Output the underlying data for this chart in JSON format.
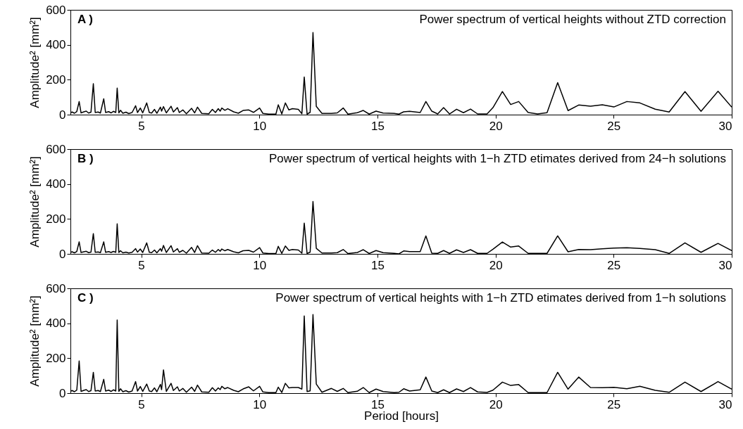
{
  "chart_data": [
    {
      "type": "line",
      "title": "Power spectrum of vertical heights without ZTD correction",
      "annotations": [
        "A )"
      ],
      "ylabel": "Amplitude² [mm²]",
      "color": "#000000",
      "xlim": [
        2,
        30
      ],
      "xticks": [
        5,
        10,
        15,
        20,
        25,
        30
      ],
      "ylim": [
        0,
        600
      ],
      "yticks": [
        0,
        200,
        400,
        600
      ],
      "x": [
        2.0,
        2.07,
        2.17,
        2.27,
        2.37,
        2.45,
        2.57,
        2.67,
        2.77,
        2.87,
        2.97,
        3.05,
        3.17,
        3.27,
        3.41,
        3.49,
        3.62,
        3.72,
        3.82,
        3.92,
        3.98,
        4.05,
        4.12,
        4.22,
        4.35,
        4.47,
        4.61,
        4.76,
        4.84,
        4.96,
        5.06,
        5.23,
        5.34,
        5.44,
        5.56,
        5.66,
        5.81,
        5.86,
        5.94,
        6.06,
        6.26,
        6.36,
        6.53,
        6.61,
        6.76,
        6.91,
        7.13,
        7.26,
        7.38,
        7.56,
        7.86,
        8.01,
        8.14,
        8.26,
        8.34,
        8.41,
        8.54,
        8.66,
        8.91,
        9.11,
        9.31,
        9.55,
        9.75,
        10.01,
        10.15,
        10.4,
        10.7,
        10.8,
        10.95,
        11.1,
        11.25,
        11.4,
        11.65,
        11.8,
        11.9,
        12.02,
        12.15,
        12.27,
        12.41,
        12.65,
        13.05,
        13.3,
        13.55,
        13.75,
        14.15,
        14.4,
        14.65,
        14.94,
        15.24,
        15.71,
        15.91,
        16.11,
        16.36,
        16.81,
        17.05,
        17.3,
        17.55,
        17.8,
        18.05,
        18.35,
        18.64,
        18.94,
        19.24,
        19.64,
        19.89,
        20.29,
        20.64,
        20.98,
        21.38,
        21.78,
        22.18,
        22.63,
        23.07,
        23.52,
        24.02,
        24.52,
        25.01,
        25.56,
        26.11,
        26.76,
        27.35,
        28.02,
        28.7,
        29.42,
        30
      ],
      "values": [
        10,
        15,
        8,
        18,
        75,
        10,
        16,
        20,
        9,
        14,
        177,
        12,
        15,
        9,
        91,
        12,
        17,
        10,
        19,
        12,
        152,
        10,
        25,
        8,
        14,
        6,
        12,
        51,
        12,
        38,
        10,
        67,
        12,
        9,
        30,
        8,
        43,
        20,
        46,
        10,
        48,
        15,
        40,
        12,
        27,
        5,
        36,
        10,
        43,
        7,
        5,
        30,
        12,
        34,
        20,
        38,
        25,
        34,
        16,
        8,
        24,
        27,
        13,
        38,
        7,
        3,
        3,
        56,
        4,
        67,
        27,
        34,
        30,
        5,
        215,
        3,
        13,
        470,
        47,
        7,
        7,
        10,
        38,
        3,
        11,
        24,
        3,
        20,
        9,
        7,
        3,
        16,
        19,
        12,
        75,
        20,
        4,
        40,
        4,
        31,
        11,
        32,
        4,
        4,
        40,
        132,
        58,
        75,
        12,
        4,
        11,
        183,
        23,
        55,
        48,
        56,
        44,
        75,
        67,
        31,
        15,
        132,
        19,
        134,
        43
      ]
    },
    {
      "type": "line",
      "title": "Power spectrum of vertical heights with 1−h ZTD etimates derived from 24−h solutions",
      "annotations": [
        "B )"
      ],
      "ylabel": "Amplitude² [mm²]",
      "color": "#000000",
      "xlim": [
        2,
        30
      ],
      "xticks": [
        5,
        10,
        15,
        20,
        25,
        30
      ],
      "ylim": [
        0,
        600
      ],
      "yticks": [
        0,
        200,
        400,
        600
      ],
      "x": [
        2.0,
        2.07,
        2.17,
        2.27,
        2.37,
        2.45,
        2.57,
        2.67,
        2.77,
        2.87,
        2.97,
        3.05,
        3.17,
        3.27,
        3.41,
        3.49,
        3.62,
        3.72,
        3.82,
        3.92,
        3.98,
        4.05,
        4.12,
        4.22,
        4.35,
        4.47,
        4.61,
        4.76,
        4.84,
        4.96,
        5.06,
        5.23,
        5.34,
        5.44,
        5.56,
        5.66,
        5.81,
        5.86,
        5.94,
        6.06,
        6.26,
        6.36,
        6.53,
        6.61,
        6.76,
        6.91,
        7.13,
        7.26,
        7.38,
        7.56,
        7.86,
        8.01,
        8.14,
        8.26,
        8.34,
        8.41,
        8.54,
        8.66,
        8.91,
        9.11,
        9.31,
        9.55,
        9.75,
        10.01,
        10.15,
        10.4,
        10.7,
        10.8,
        10.95,
        11.1,
        11.25,
        11.4,
        11.65,
        11.8,
        11.9,
        12.02,
        12.15,
        12.27,
        12.41,
        12.65,
        13.05,
        13.3,
        13.55,
        13.75,
        14.15,
        14.4,
        14.65,
        14.94,
        15.24,
        15.71,
        15.91,
        16.11,
        16.36,
        16.81,
        17.05,
        17.3,
        17.55,
        17.8,
        18.05,
        18.35,
        18.64,
        18.94,
        19.24,
        19.64,
        19.89,
        20.29,
        20.64,
        20.98,
        21.38,
        21.78,
        22.18,
        22.63,
        23.07,
        23.52,
        24.02,
        24.52,
        25.01,
        25.56,
        26.11,
        26.76,
        27.35,
        28.02,
        28.7,
        29.42,
        30
      ],
      "values": [
        8,
        12,
        6,
        14,
        69,
        8,
        12,
        15,
        7,
        10,
        116,
        9,
        11,
        7,
        69,
        9,
        13,
        8,
        14,
        9,
        172,
        8,
        18,
        6,
        10,
        5,
        9,
        30,
        10,
        28,
        8,
        63,
        9,
        7,
        22,
        6,
        30,
        15,
        48,
        8,
        47,
        11,
        30,
        9,
        20,
        4,
        37,
        8,
        47,
        5,
        4,
        22,
        9,
        25,
        15,
        28,
        18,
        25,
        12,
        6,
        18,
        20,
        10,
        36,
        5,
        2,
        2,
        43,
        3,
        45,
        20,
        25,
        22,
        4,
        176,
        2,
        10,
        300,
        32,
        5,
        5,
        7,
        25,
        2,
        8,
        24,
        2,
        19,
        7,
        3,
        0,
        17,
        13,
        13,
        103,
        4,
        3,
        19,
        3,
        23,
        8,
        24,
        3,
        3,
        27,
        68,
        39,
        45,
        3,
        3,
        3,
        103,
        12,
        25,
        24,
        29,
        33,
        35,
        31,
        24,
        3,
        63,
        9,
        60,
        19
      ]
    },
    {
      "type": "line",
      "title": "Power spectrum of vertical heights with 1−h ZTD etimates derived from 1−h solutions",
      "annotations": [
        "C )"
      ],
      "xlabel": "Period [hours]",
      "ylabel": "Amplitude² [mm²]",
      "color": "#000000",
      "xlim": [
        2,
        30
      ],
      "xticks": [
        5,
        10,
        15,
        20,
        25,
        30
      ],
      "ylim": [
        0,
        600
      ],
      "yticks": [
        0,
        200,
        400,
        600
      ],
      "x": [
        2.0,
        2.07,
        2.17,
        2.27,
        2.37,
        2.45,
        2.57,
        2.67,
        2.77,
        2.87,
        2.97,
        3.05,
        3.17,
        3.27,
        3.41,
        3.49,
        3.62,
        3.72,
        3.82,
        3.92,
        3.98,
        4.05,
        4.12,
        4.22,
        4.35,
        4.47,
        4.61,
        4.76,
        4.84,
        4.96,
        5.06,
        5.23,
        5.34,
        5.44,
        5.56,
        5.66,
        5.81,
        5.86,
        5.94,
        6.06,
        6.26,
        6.36,
        6.53,
        6.61,
        6.76,
        6.91,
        7.13,
        7.26,
        7.38,
        7.56,
        7.86,
        8.01,
        8.14,
        8.26,
        8.34,
        8.41,
        8.54,
        8.66,
        8.91,
        9.11,
        9.31,
        9.55,
        9.75,
        10.01,
        10.15,
        10.4,
        10.7,
        10.8,
        10.95,
        11.1,
        11.25,
        11.4,
        11.65,
        11.8,
        11.9,
        12.02,
        12.15,
        12.27,
        12.41,
        12.65,
        13.05,
        13.3,
        13.55,
        13.75,
        14.15,
        14.4,
        14.65,
        14.94,
        15.24,
        15.71,
        15.91,
        16.11,
        16.36,
        16.81,
        17.05,
        17.3,
        17.55,
        17.8,
        18.05,
        18.35,
        18.64,
        18.94,
        19.24,
        19.64,
        19.89,
        20.29,
        20.64,
        20.98,
        21.38,
        21.78,
        22.18,
        22.63,
        23.07,
        23.52,
        24.02,
        24.52,
        25.01,
        25.56,
        26.11,
        26.76,
        27.35,
        28.02,
        28.7,
        29.42,
        30
      ],
      "values": [
        10,
        15,
        8,
        18,
        184,
        10,
        16,
        20,
        9,
        14,
        119,
        12,
        15,
        9,
        79,
        12,
        17,
        10,
        19,
        12,
        419,
        10,
        25,
        8,
        14,
        6,
        12,
        66,
        12,
        38,
        10,
        52,
        12,
        9,
        30,
        8,
        50,
        20,
        133,
        10,
        56,
        15,
        36,
        12,
        27,
        5,
        34,
        10,
        46,
        7,
        5,
        31,
        12,
        30,
        20,
        39,
        25,
        32,
        16,
        8,
        24,
        36,
        13,
        39,
        7,
        3,
        3,
        34,
        4,
        56,
        30,
        32,
        32,
        23,
        442,
        9,
        13,
        450,
        52,
        5,
        27,
        10,
        27,
        3,
        11,
        32,
        3,
        23,
        9,
        3,
        5,
        25,
        12,
        19,
        92,
        12,
        3,
        19,
        3,
        24,
        9,
        32,
        7,
        4,
        17,
        63,
        44,
        49,
        3,
        3,
        3,
        119,
        23,
        92,
        32,
        31,
        33,
        25,
        39,
        16,
        5,
        63,
        9,
        66,
        23
      ]
    }
  ]
}
